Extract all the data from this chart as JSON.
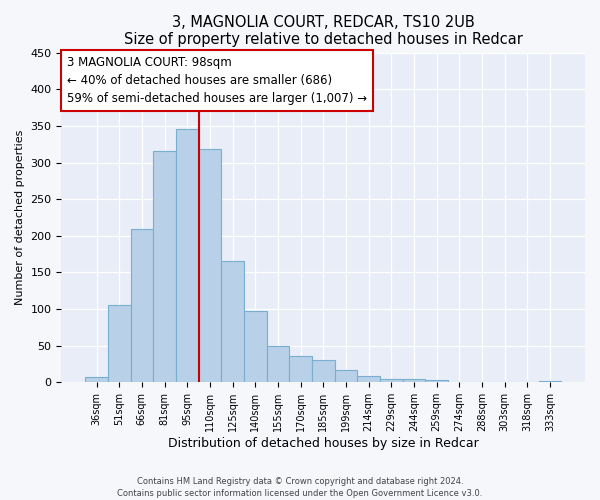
{
  "title": "3, MAGNOLIA COURT, REDCAR, TS10 2UB",
  "subtitle": "Size of property relative to detached houses in Redcar",
  "xlabel": "Distribution of detached houses by size in Redcar",
  "ylabel": "Number of detached properties",
  "bar_labels": [
    "36sqm",
    "51sqm",
    "66sqm",
    "81sqm",
    "95sqm",
    "110sqm",
    "125sqm",
    "140sqm",
    "155sqm",
    "170sqm",
    "185sqm",
    "199sqm",
    "214sqm",
    "229sqm",
    "244sqm",
    "259sqm",
    "274sqm",
    "288sqm",
    "303sqm",
    "318sqm",
    "333sqm"
  ],
  "bar_values": [
    7,
    105,
    210,
    316,
    346,
    318,
    166,
    97,
    50,
    36,
    30,
    17,
    9,
    5,
    5,
    3,
    1,
    1,
    1,
    1,
    2
  ],
  "bar_color": "#b8d0e8",
  "bar_edge_color": "#7aaed0",
  "property_line_color": "#cc0000",
  "annotation_title": "3 MAGNOLIA COURT: 98sqm",
  "annotation_line1": "← 40% of detached houses are smaller (686)",
  "annotation_line2": "59% of semi-detached houses are larger (1,007) →",
  "ylim": [
    0,
    450
  ],
  "yticks": [
    0,
    50,
    100,
    150,
    200,
    250,
    300,
    350,
    400,
    450
  ],
  "footer1": "Contains HM Land Registry data © Crown copyright and database right 2024.",
  "footer2": "Contains public sector information licensed under the Open Government Licence v3.0.",
  "bg_color": "#f5f7fb",
  "plot_bg_color": "#e8edf8"
}
